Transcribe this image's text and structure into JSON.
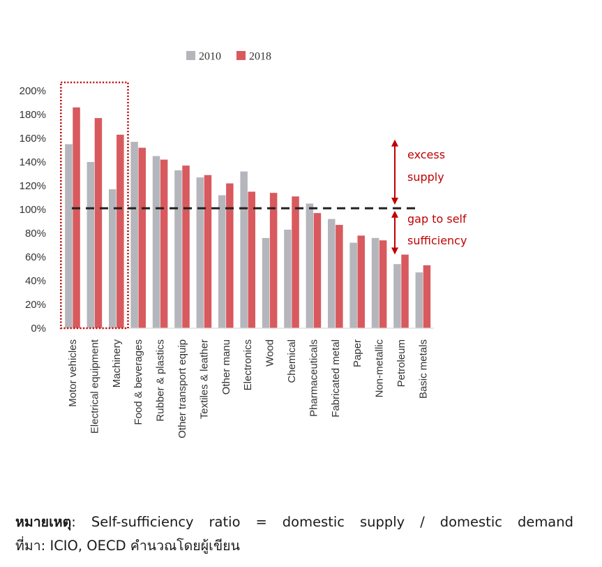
{
  "chart_data": {
    "type": "bar",
    "title": "",
    "xlabel": "",
    "ylabel": "",
    "ylim": [
      0,
      200
    ],
    "y_ticks": [
      0,
      20,
      40,
      60,
      80,
      100,
      120,
      140,
      160,
      180,
      200
    ],
    "y_tick_labels": [
      "0%",
      "20%",
      "40%",
      "60%",
      "80%",
      "100%",
      "120%",
      "140%",
      "160%",
      "180%",
      "200%"
    ],
    "categories": [
      "Motor vehicles",
      "Electrical equipment",
      "Machinery",
      "Food & beverages",
      "Rubber & plastics",
      "Other transport equip",
      "Textiles & leather",
      "Other manu",
      "Electronics",
      "Wood",
      "Chemical",
      "Pharmaceuticals",
      "Fabricated metal",
      "Paper",
      "Non-metallic",
      "Petroleum",
      "Basic metals"
    ],
    "series": [
      {
        "name": "2010",
        "color": "#b5b5bc",
        "values": [
          155,
          140,
          117,
          157,
          145,
          133,
          127,
          112,
          132,
          76,
          83,
          105,
          92,
          72,
          76,
          54,
          47
        ]
      },
      {
        "name": "2018",
        "color": "#d85a5e",
        "values": [
          186,
          177,
          163,
          152,
          142,
          137,
          129,
          122,
          115,
          114,
          111,
          97,
          87,
          78,
          74,
          62,
          53
        ]
      }
    ],
    "legend_position": "top",
    "reference_line": {
      "value": 101,
      "style": "dashed",
      "color": "#222222"
    },
    "highlight_categories": [
      "Motor vehicles",
      "Electrical equipment",
      "Machinery"
    ],
    "highlight_color": "#c00000",
    "annotations": {
      "excess": {
        "lines": [
          "excess",
          "supply"
        ],
        "arrow_from": 156,
        "arrow_to": 107
      },
      "gap": {
        "lines": [
          "gap to self",
          "sufficiency"
        ],
        "arrow_from": 96,
        "arrow_to": 65
      },
      "color": "#c00000"
    }
  },
  "note": {
    "label": "หมายเหตุ",
    "text": ": Self-sufficiency ratio = domestic supply / domestic demand"
  },
  "source": {
    "label": "ที่มา",
    "text": ": ICIO, OECD คำนวณโดยผู้เขียน"
  }
}
